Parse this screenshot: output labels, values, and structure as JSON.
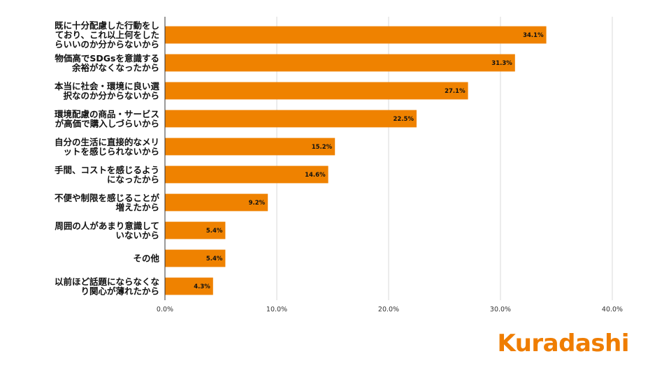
{
  "chart_data": {
    "type": "bar",
    "orientation": "horizontal",
    "categories": [
      [
        "既に十分配慮した行動をし",
        "ており、これ以上何をした",
        "らいいのか分からないから"
      ],
      [
        "物価高でSDGsを意識する",
        "余裕がなくなったから"
      ],
      [
        "本当に社会・環境に良い選",
        "択なのか分からないから"
      ],
      [
        "環境配慮の商品・サービス",
        "が高価で購入しづらいから"
      ],
      [
        "自分の生活に直接的なメリ",
        "ットを感じられないから"
      ],
      [
        "手間、コストを感じるよう",
        "になったから"
      ],
      [
        "不便や制限を感じることが",
        "増えたから"
      ],
      [
        "周囲の人があまり意識して",
        "いないから"
      ],
      [
        "その他"
      ],
      [
        "以前ほど話題にならなくな",
        "り関心が薄れたから"
      ]
    ],
    "values": [
      34.1,
      31.3,
      27.1,
      22.5,
      15.2,
      14.6,
      9.2,
      5.4,
      5.4,
      4.3
    ],
    "data_labels": [
      "34.1%",
      "31.3%",
      "27.1%",
      "22.5%",
      "15.2%",
      "14.6%",
      "9.2%",
      "5.4%",
      "5.4%",
      "4.3%"
    ],
    "xlim": [
      0,
      40
    ],
    "xticks": [
      0,
      10,
      20,
      30,
      40
    ],
    "xtick_labels": [
      "0.0%",
      "10.0%",
      "20.0%",
      "30.0%",
      "40.0%"
    ],
    "grid": true,
    "bar_color": "#ef8200",
    "grid_color": "#d9d9d9",
    "axis_color": "#333333"
  },
  "logo": {
    "text": "Kuradashi",
    "color": "#ef7d00"
  }
}
